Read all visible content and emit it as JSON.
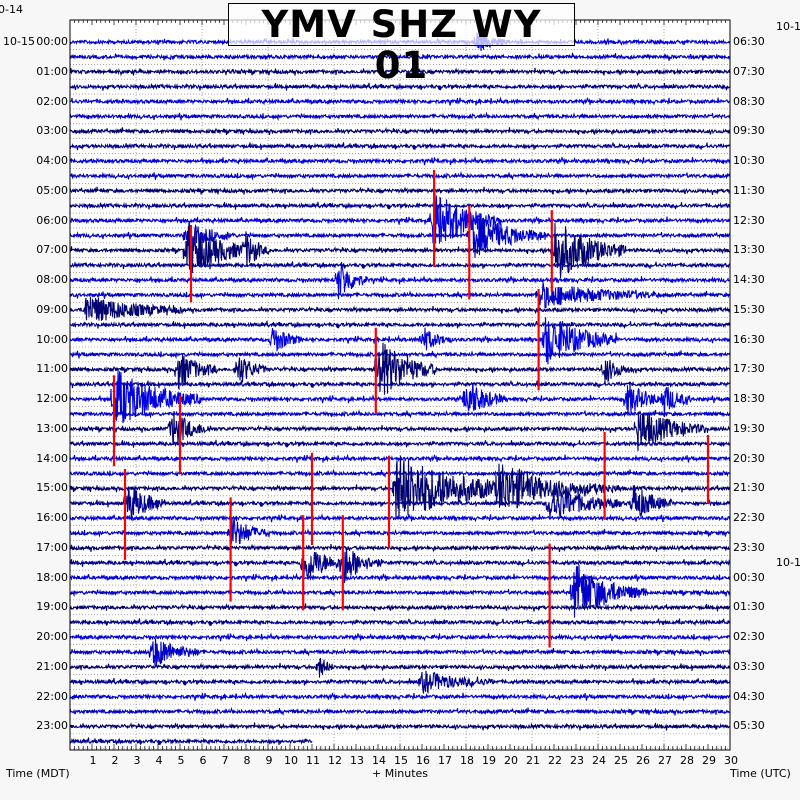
{
  "chart_data": {
    "type": "line",
    "title": "YMV SHZ WY 01",
    "xlabel": "+ Minutes",
    "ylabel_left": "Time (MDT)",
    "ylabel_right": "Time (UTC)",
    "xlim": [
      0,
      30
    ],
    "x_ticks": [
      "1",
      "2",
      "3",
      "4",
      "5",
      "6",
      "7",
      "8",
      "9",
      "10",
      "11",
      "12",
      "13",
      "14",
      "15",
      "16",
      "17",
      "18",
      "19",
      "20",
      "21",
      "22",
      "23",
      "24",
      "25",
      "26",
      "27",
      "28",
      "29",
      "30"
    ],
    "left_date_labels": [
      "0-14",
      "10-15"
    ],
    "left_time_labels": [
      "00:00",
      "01:00",
      "02:00",
      "03:00",
      "04:00",
      "05:00",
      "06:00",
      "07:00",
      "08:00",
      "09:00",
      "10:00",
      "11:00",
      "12:00",
      "13:00",
      "14:00",
      "15:00",
      "16:00",
      "17:00",
      "18:00",
      "19:00",
      "20:00",
      "21:00",
      "22:00",
      "23:00"
    ],
    "right_date_labels": [
      "10-1",
      "10-1"
    ],
    "right_time_labels": [
      "06:30",
      "07:30",
      "08:30",
      "09:30",
      "10:30",
      "11:30",
      "12:30",
      "13:30",
      "14:30",
      "15:30",
      "16:30",
      "17:30",
      "18:30",
      "19:30",
      "20:30",
      "21:30",
      "22:30",
      "23:30",
      "00:30",
      "01:30",
      "02:30",
      "03:30",
      "04:30",
      "05:30"
    ],
    "rows": 48,
    "minutes_per_row": 30,
    "last_row_end_minute": 11,
    "trace_colors": [
      "#0000e0",
      "#0000c8",
      "#00006e",
      "#000090"
    ],
    "pick_color": "#ff0000",
    "events": [
      {
        "row": 0,
        "minute": 18.5,
        "amp": 0.5,
        "dur": 0.6
      },
      {
        "row": 14,
        "minute": 5.3,
        "amp": 1.2,
        "dur": 1.5
      },
      {
        "row": 13,
        "minute": 5.3,
        "amp": 0.6,
        "dur": 1.0
      },
      {
        "row": 14,
        "minute": 8.0,
        "amp": 0.6,
        "dur": 0.5
      },
      {
        "row": 12,
        "minute": 16.5,
        "amp": 1.4,
        "dur": 1.4
      },
      {
        "row": 13,
        "minute": 18.2,
        "amp": 1.1,
        "dur": 1.6
      },
      {
        "row": 14,
        "minute": 22.0,
        "amp": 1.5,
        "dur": 1.5
      },
      {
        "row": 16,
        "minute": 12.2,
        "amp": 1.0,
        "dur": 0.6
      },
      {
        "row": 18,
        "minute": 0.7,
        "amp": 0.7,
        "dur": 2.0
      },
      {
        "row": 17,
        "minute": 21.3,
        "amp": 0.6,
        "dur": 2.5
      },
      {
        "row": 20,
        "minute": 21.6,
        "amp": 1.2,
        "dur": 1.5
      },
      {
        "row": 20,
        "minute": 9.2,
        "amp": 0.7,
        "dur": 0.6
      },
      {
        "row": 20,
        "minute": 16.0,
        "amp": 0.6,
        "dur": 0.6
      },
      {
        "row": 22,
        "minute": 14.0,
        "amp": 1.5,
        "dur": 1.2
      },
      {
        "row": 22,
        "minute": 4.9,
        "amp": 0.9,
        "dur": 0.8
      },
      {
        "row": 22,
        "minute": 7.6,
        "amp": 0.8,
        "dur": 0.6
      },
      {
        "row": 22,
        "minute": 24.3,
        "amp": 0.6,
        "dur": 0.6
      },
      {
        "row": 24,
        "minute": 2.0,
        "amp": 1.4,
        "dur": 1.8
      },
      {
        "row": 24,
        "minute": 18.0,
        "amp": 1.0,
        "dur": 0.8
      },
      {
        "row": 24,
        "minute": 25.3,
        "amp": 0.8,
        "dur": 0.8
      },
      {
        "row": 24,
        "minute": 27.0,
        "amp": 0.7,
        "dur": 0.6
      },
      {
        "row": 26,
        "minute": 4.6,
        "amp": 0.9,
        "dur": 0.8
      },
      {
        "row": 26,
        "minute": 25.8,
        "amp": 1.0,
        "dur": 1.4
      },
      {
        "row": 30,
        "minute": 19.5,
        "amp": 0.9,
        "dur": 2.5
      },
      {
        "row": 30,
        "minute": 14.8,
        "amp": 1.6,
        "dur": 2.8
      },
      {
        "row": 31,
        "minute": 21.8,
        "amp": 0.9,
        "dur": 1.5
      },
      {
        "row": 31,
        "minute": 25.6,
        "amp": 0.9,
        "dur": 0.8
      },
      {
        "row": 31,
        "minute": 2.6,
        "amp": 1.0,
        "dur": 0.8
      },
      {
        "row": 33,
        "minute": 7.3,
        "amp": 0.8,
        "dur": 0.8
      },
      {
        "row": 35,
        "minute": 10.6,
        "amp": 1.0,
        "dur": 0.9
      },
      {
        "row": 35,
        "minute": 12.4,
        "amp": 0.9,
        "dur": 0.8
      },
      {
        "row": 37,
        "minute": 22.9,
        "amp": 1.3,
        "dur": 1.5
      },
      {
        "row": 41,
        "minute": 3.7,
        "amp": 0.8,
        "dur": 1.0
      },
      {
        "row": 43,
        "minute": 16.0,
        "amp": 0.5,
        "dur": 1.5
      },
      {
        "row": 42,
        "minute": 11.3,
        "amp": 0.6,
        "dur": 0.3
      }
    ],
    "picks": [
      {
        "minute": 5.5,
        "from_row": 12.3,
        "to_row": 17.5
      },
      {
        "minute": 16.55,
        "from_row": 8.6,
        "to_row": 15.1
      },
      {
        "minute": 18.15,
        "from_row": 11.0,
        "to_row": 17.3
      },
      {
        "minute": 21.9,
        "from_row": 11.3,
        "to_row": 16.8
      },
      {
        "minute": 21.3,
        "from_row": 16.6,
        "to_row": 23.4
      },
      {
        "minute": 13.9,
        "from_row": 19.2,
        "to_row": 25.0
      },
      {
        "minute": 2.0,
        "from_row": 22.4,
        "to_row": 28.5
      },
      {
        "minute": 5.0,
        "from_row": 23.8,
        "to_row": 29.0
      },
      {
        "minute": 24.3,
        "from_row": 26.2,
        "to_row": 32.1
      },
      {
        "minute": 29.0,
        "from_row": 26.4,
        "to_row": 31.0
      },
      {
        "minute": 2.5,
        "from_row": 28.7,
        "to_row": 34.8
      },
      {
        "minute": 14.5,
        "from_row": 27.8,
        "to_row": 34.0
      },
      {
        "minute": 11.0,
        "from_row": 27.6,
        "to_row": 33.8
      },
      {
        "minute": 7.3,
        "from_row": 30.6,
        "to_row": 37.6
      },
      {
        "minute": 10.6,
        "from_row": 31.8,
        "to_row": 38.2
      },
      {
        "minute": 12.4,
        "from_row": 31.8,
        "to_row": 38.2
      },
      {
        "minute": 21.8,
        "from_row": 33.7,
        "to_row": 40.7
      }
    ]
  }
}
